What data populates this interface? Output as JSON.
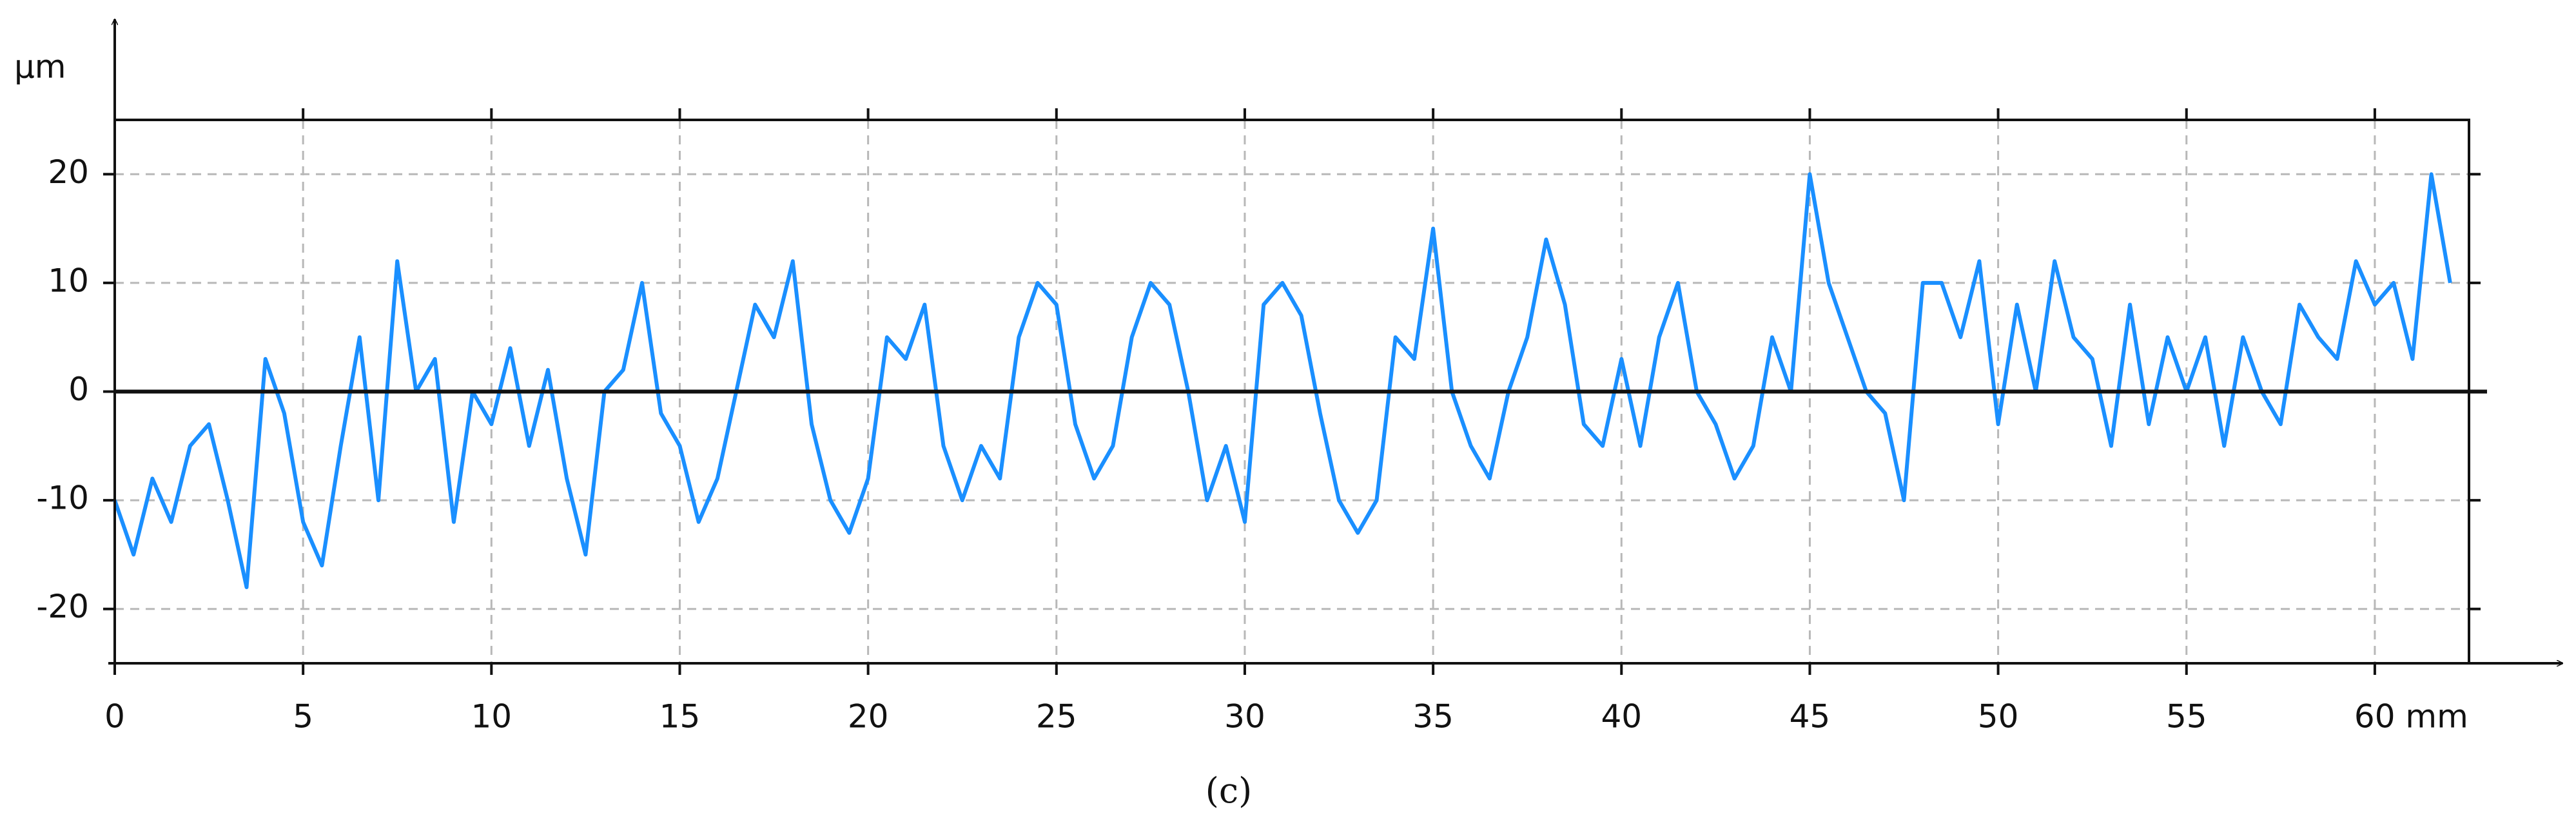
{
  "chart_data": {
    "type": "line",
    "y_unit": "µm",
    "caption": "(c)",
    "color": "#1a8fff",
    "grid": true,
    "zero_line": true,
    "x": [
      0,
      0.5,
      1,
      1.5,
      2,
      2.5,
      3,
      3.5,
      4,
      4.5,
      5,
      5.5,
      6,
      6.5,
      7,
      7.5,
      8,
      8.5,
      9,
      9.5,
      10,
      10.5,
      11,
      11.5,
      12,
      12.5,
      13,
      13.5,
      14,
      14.5,
      15,
      15.5,
      16,
      16.5,
      17,
      17.5,
      18,
      18.5,
      19,
      19.5,
      20,
      20.5,
      21,
      21.5,
      22,
      22.5,
      23,
      23.5,
      24,
      24.5,
      25,
      25.5,
      26,
      26.5,
      27,
      27.5,
      28,
      28.5,
      29,
      29.5,
      30,
      30.5,
      31,
      31.5,
      32,
      32.5,
      33,
      33.5,
      34,
      34.5,
      35,
      35.5,
      36,
      36.5,
      37,
      37.5,
      38,
      38.5,
      39,
      39.5,
      40,
      40.5,
      41,
      41.5,
      42,
      42.5,
      43,
      43.5,
      44,
      44.5,
      45,
      45.5,
      46,
      46.5,
      47,
      47.5,
      48,
      48.5,
      49,
      49.5,
      50,
      50.5,
      51,
      51.5,
      52,
      52.5,
      53,
      53.5,
      54,
      54.5,
      55,
      55.5,
      56,
      56.5,
      57,
      57.5,
      58,
      58.5,
      59,
      59.5,
      60,
      60.5,
      61,
      61.5,
      62
    ],
    "values": [
      -10,
      -15,
      -8,
      -12,
      -5,
      -3,
      -10,
      -18,
      3,
      -2,
      -12,
      -16,
      -5,
      5,
      -10,
      12,
      0,
      3,
      -12,
      0,
      -3,
      4,
      -5,
      2,
      -8,
      -15,
      0,
      2,
      10,
      -2,
      -5,
      -12,
      -8,
      0,
      8,
      5,
      12,
      -3,
      -10,
      -13,
      -8,
      5,
      3,
      8,
      -5,
      -10,
      -5,
      -8,
      5,
      10,
      8,
      -3,
      -8,
      -5,
      5,
      10,
      8,
      0,
      -10,
      -5,
      -12,
      8,
      10,
      7,
      -2,
      -10,
      -13,
      -10,
      5,
      3,
      15,
      0,
      -5,
      -8,
      0,
      5,
      14,
      8,
      -3,
      -5,
      3,
      -5,
      5,
      10,
      0,
      -3,
      -8,
      -5,
      5,
      0,
      20,
      10,
      5,
      0,
      -2,
      -10,
      10,
      10,
      5,
      12,
      -3,
      8,
      0,
      12,
      5,
      3,
      -5,
      8,
      -3,
      5,
      0,
      5,
      -5,
      5,
      0,
      -3,
      8,
      5,
      3,
      12,
      8,
      10,
      3,
      20,
      10
    ],
    "xlim": [
      0,
      62.5
    ],
    "ylim": [
      -25,
      25
    ],
    "xticks": [
      0,
      5,
      10,
      15,
      20,
      25,
      30,
      35,
      40,
      45,
      50,
      55,
      {
        "value": 60,
        "label": "60 mm"
      }
    ],
    "yticks": [
      -20,
      -10,
      0,
      10,
      20
    ]
  }
}
